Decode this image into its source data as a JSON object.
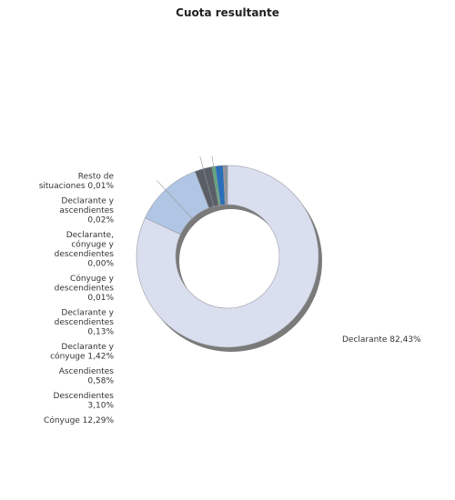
{
  "chart_data": {
    "type": "pie",
    "title": "Cuota resultante",
    "series": [
      {
        "name": "Declarante",
        "label_lines": [
          "Declarante 82,43%"
        ],
        "value": 82.43,
        "color": "#dadfef"
      },
      {
        "name": "Cónyuge",
        "label_lines": [
          "Cónyuge 12,29%"
        ],
        "value": 12.29,
        "color": "#b0c6e4"
      },
      {
        "name": "Descendientes",
        "label_lines": [
          "Descendientes",
          "3,10%"
        ],
        "value": 3.1,
        "color": "#5a5e66"
      },
      {
        "name": "Ascendientes",
        "label_lines": [
          "Ascendientes",
          "0,58%"
        ],
        "value": 0.58,
        "color": "#3fae6a"
      },
      {
        "name": "Declarante y cónyuge",
        "label_lines": [
          "Declarante y",
          "cónyuge 1,42%"
        ],
        "value": 1.42,
        "color": "#2a6fb8"
      },
      {
        "name": "Declarante y descendientes",
        "label_lines": [
          "Declarante y",
          "descendientes",
          "0,13%"
        ],
        "value": 0.13,
        "color": "#c8a64a"
      },
      {
        "name": "Cónyuge y descendientes",
        "label_lines": [
          "Cónyuge y",
          "descendientes",
          "0,01%"
        ],
        "value": 0.01,
        "color": "#8e44ad"
      },
      {
        "name": "Declarante, cónyuge y descendientes",
        "label_lines": [
          "Declarante,",
          "cónyuge y",
          "descendientes",
          "0,00%"
        ],
        "value": 0.0,
        "color": "#d35400"
      },
      {
        "name": "Declarante y ascendientes",
        "label_lines": [
          "Declarante y",
          "ascendientes",
          "0,02%"
        ],
        "value": 0.02,
        "color": "#16a085"
      },
      {
        "name": "Resto de situaciones",
        "label_lines": [
          "Resto de",
          "situaciones 0,01%"
        ],
        "value": 0.01,
        "color": "#7f8c8d"
      }
    ]
  }
}
